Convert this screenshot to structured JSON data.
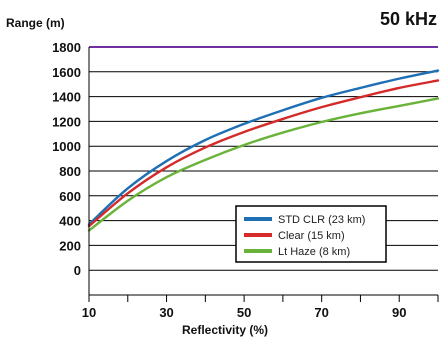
{
  "chart_data": {
    "type": "line",
    "title": "50 kHz",
    "xlabel": "Reflectivity (%)",
    "ylabel": "Range (m)",
    "xlim": [
      10,
      100
    ],
    "ylim": [
      -200,
      1800
    ],
    "x_ticks": [
      10,
      30,
      50,
      70,
      90
    ],
    "x_tick_labels": [
      "10",
      "30",
      "50",
      "70",
      "90"
    ],
    "y_ticks": [
      0,
      200,
      400,
      600,
      800,
      1000,
      1200,
      1400,
      1600,
      1800
    ],
    "y_tick_labels": [
      "0",
      "200",
      "400",
      "600",
      "800",
      "1000",
      "1200",
      "1400",
      "1600",
      "1800"
    ],
    "grid": "horizontal",
    "legend_position": "lower-right",
    "reference_line": {
      "y": 1800,
      "color": "#7030a0"
    },
    "series": [
      {
        "name": "STD CLR (23 km)",
        "color": "#1f6fb5",
        "x": [
          10,
          20,
          30,
          40,
          50,
          60,
          70,
          80,
          90,
          100
        ],
        "y": [
          370,
          660,
          880,
          1050,
          1180,
          1290,
          1390,
          1470,
          1545,
          1610
        ]
      },
      {
        "name": "Clear (15 km)",
        "color": "#d42a2a",
        "x": [
          10,
          20,
          30,
          40,
          50,
          60,
          70,
          80,
          90,
          100
        ],
        "y": [
          355,
          620,
          830,
          990,
          1115,
          1220,
          1315,
          1395,
          1470,
          1530
        ]
      },
      {
        "name": "Lt Haze (8 km)",
        "color": "#6ab33a",
        "x": [
          10,
          20,
          30,
          40,
          50,
          60,
          70,
          80,
          90,
          100
        ],
        "y": [
          320,
          560,
          750,
          890,
          1010,
          1110,
          1195,
          1265,
          1325,
          1385
        ]
      }
    ]
  }
}
